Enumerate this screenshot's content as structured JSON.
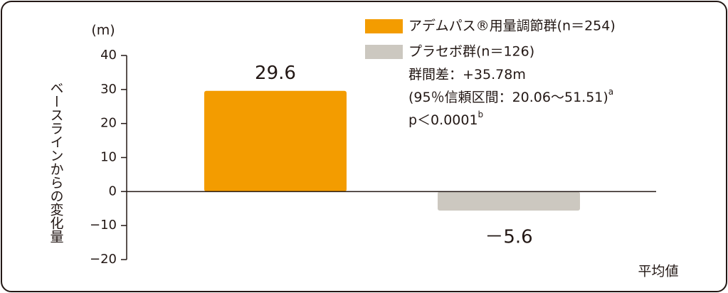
{
  "chart_data": {
    "type": "bar",
    "unit_label": "(m)",
    "y_label": "ベースラインからの変化量",
    "x_label": "平均値",
    "categories": [
      null,
      null
    ],
    "values": [
      29.6,
      -5.6
    ],
    "value_labels": [
      "29.6",
      "－5.6"
    ],
    "colors": [
      "#f39c00",
      "#ccc8c0"
    ],
    "legend": [
      "アデムパス®用量調節群(n＝254)",
      "プラセボ群(n＝126)"
    ],
    "annotations": [
      {
        "text": "群間差：+35.78m"
      },
      {
        "text": "(95％信頼区間：20.06〜51.51)",
        "sup": "a"
      },
      {
        "text": "p＜0.0001",
        "sup": "b"
      }
    ],
    "ylim": [
      -20,
      40
    ],
    "yticks": [
      {
        "value": -20,
        "label": "−20"
      },
      {
        "value": -10,
        "label": "−10"
      },
      0,
      10,
      20,
      30,
      40
    ]
  }
}
